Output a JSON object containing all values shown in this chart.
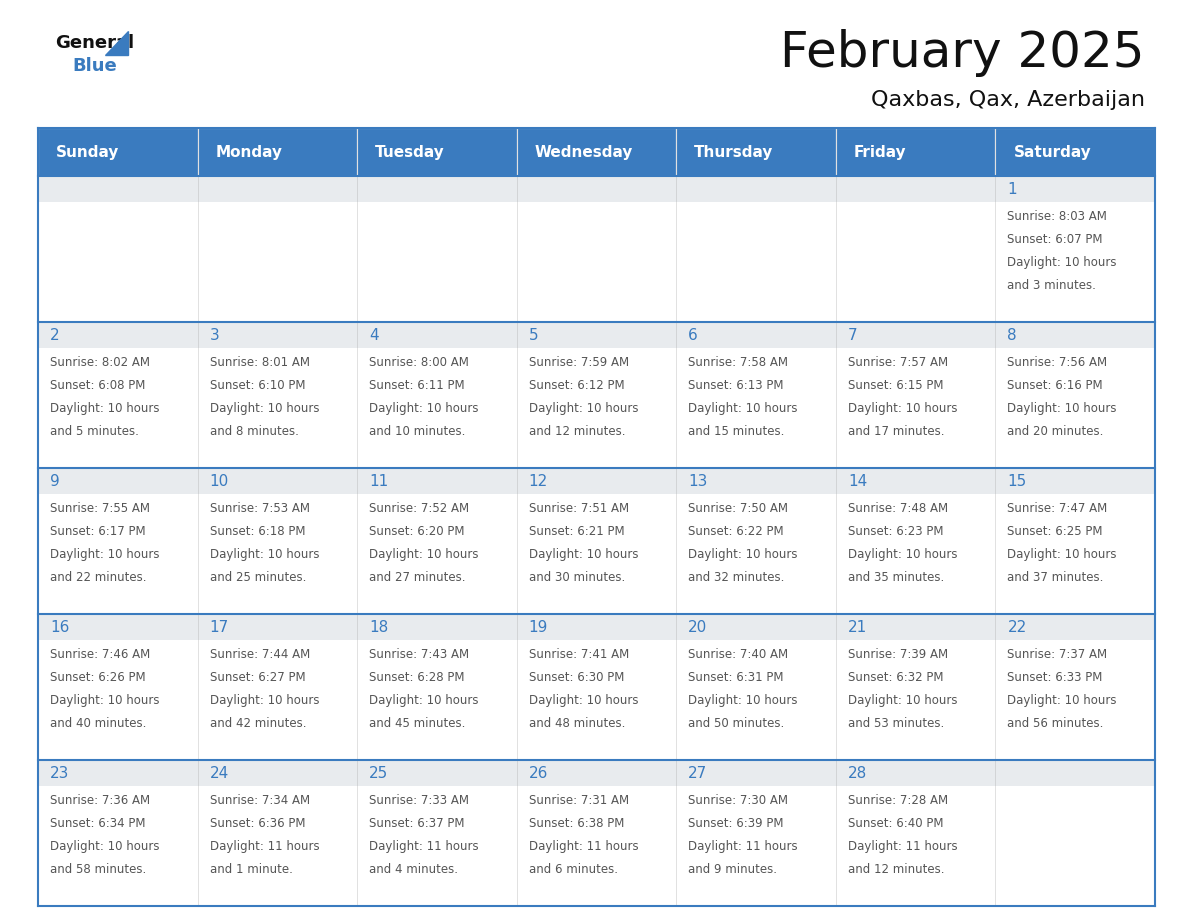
{
  "title": "February 2025",
  "subtitle": "Qaxbas, Qax, Azerbaijan",
  "days_of_week": [
    "Sunday",
    "Monday",
    "Tuesday",
    "Wednesday",
    "Thursday",
    "Friday",
    "Saturday"
  ],
  "header_bg": "#3a7bbf",
  "header_text": "#ffffff",
  "title_color": "#111111",
  "subtitle_color": "#111111",
  "day_number_color": "#3a7bbf",
  "cell_text_color": "#555555",
  "row_sep_color": "#3a7bbf",
  "bg_color": "#ffffff",
  "day_num_bg": "#eeeff2",
  "calendar_data": [
    [
      null,
      null,
      null,
      null,
      null,
      null,
      {
        "day": 1,
        "sunrise": "8:03 AM",
        "sunset": "6:07 PM",
        "dl1": "Daylight: 10 hours",
        "dl2": "and 3 minutes."
      }
    ],
    [
      {
        "day": 2,
        "sunrise": "8:02 AM",
        "sunset": "6:08 PM",
        "dl1": "Daylight: 10 hours",
        "dl2": "and 5 minutes."
      },
      {
        "day": 3,
        "sunrise": "8:01 AM",
        "sunset": "6:10 PM",
        "dl1": "Daylight: 10 hours",
        "dl2": "and 8 minutes."
      },
      {
        "day": 4,
        "sunrise": "8:00 AM",
        "sunset": "6:11 PM",
        "dl1": "Daylight: 10 hours",
        "dl2": "and 10 minutes."
      },
      {
        "day": 5,
        "sunrise": "7:59 AM",
        "sunset": "6:12 PM",
        "dl1": "Daylight: 10 hours",
        "dl2": "and 12 minutes."
      },
      {
        "day": 6,
        "sunrise": "7:58 AM",
        "sunset": "6:13 PM",
        "dl1": "Daylight: 10 hours",
        "dl2": "and 15 minutes."
      },
      {
        "day": 7,
        "sunrise": "7:57 AM",
        "sunset": "6:15 PM",
        "dl1": "Daylight: 10 hours",
        "dl2": "and 17 minutes."
      },
      {
        "day": 8,
        "sunrise": "7:56 AM",
        "sunset": "6:16 PM",
        "dl1": "Daylight: 10 hours",
        "dl2": "and 20 minutes."
      }
    ],
    [
      {
        "day": 9,
        "sunrise": "7:55 AM",
        "sunset": "6:17 PM",
        "dl1": "Daylight: 10 hours",
        "dl2": "and 22 minutes."
      },
      {
        "day": 10,
        "sunrise": "7:53 AM",
        "sunset": "6:18 PM",
        "dl1": "Daylight: 10 hours",
        "dl2": "and 25 minutes."
      },
      {
        "day": 11,
        "sunrise": "7:52 AM",
        "sunset": "6:20 PM",
        "dl1": "Daylight: 10 hours",
        "dl2": "and 27 minutes."
      },
      {
        "day": 12,
        "sunrise": "7:51 AM",
        "sunset": "6:21 PM",
        "dl1": "Daylight: 10 hours",
        "dl2": "and 30 minutes."
      },
      {
        "day": 13,
        "sunrise": "7:50 AM",
        "sunset": "6:22 PM",
        "dl1": "Daylight: 10 hours",
        "dl2": "and 32 minutes."
      },
      {
        "day": 14,
        "sunrise": "7:48 AM",
        "sunset": "6:23 PM",
        "dl1": "Daylight: 10 hours",
        "dl2": "and 35 minutes."
      },
      {
        "day": 15,
        "sunrise": "7:47 AM",
        "sunset": "6:25 PM",
        "dl1": "Daylight: 10 hours",
        "dl2": "and 37 minutes."
      }
    ],
    [
      {
        "day": 16,
        "sunrise": "7:46 AM",
        "sunset": "6:26 PM",
        "dl1": "Daylight: 10 hours",
        "dl2": "and 40 minutes."
      },
      {
        "day": 17,
        "sunrise": "7:44 AM",
        "sunset": "6:27 PM",
        "dl1": "Daylight: 10 hours",
        "dl2": "and 42 minutes."
      },
      {
        "day": 18,
        "sunrise": "7:43 AM",
        "sunset": "6:28 PM",
        "dl1": "Daylight: 10 hours",
        "dl2": "and 45 minutes."
      },
      {
        "day": 19,
        "sunrise": "7:41 AM",
        "sunset": "6:30 PM",
        "dl1": "Daylight: 10 hours",
        "dl2": "and 48 minutes."
      },
      {
        "day": 20,
        "sunrise": "7:40 AM",
        "sunset": "6:31 PM",
        "dl1": "Daylight: 10 hours",
        "dl2": "and 50 minutes."
      },
      {
        "day": 21,
        "sunrise": "7:39 AM",
        "sunset": "6:32 PM",
        "dl1": "Daylight: 10 hours",
        "dl2": "and 53 minutes."
      },
      {
        "day": 22,
        "sunrise": "7:37 AM",
        "sunset": "6:33 PM",
        "dl1": "Daylight: 10 hours",
        "dl2": "and 56 minutes."
      }
    ],
    [
      {
        "day": 23,
        "sunrise": "7:36 AM",
        "sunset": "6:34 PM",
        "dl1": "Daylight: 10 hours",
        "dl2": "and 58 minutes."
      },
      {
        "day": 24,
        "sunrise": "7:34 AM",
        "sunset": "6:36 PM",
        "dl1": "Daylight: 11 hours",
        "dl2": "and 1 minute."
      },
      {
        "day": 25,
        "sunrise": "7:33 AM",
        "sunset": "6:37 PM",
        "dl1": "Daylight: 11 hours",
        "dl2": "and 4 minutes."
      },
      {
        "day": 26,
        "sunrise": "7:31 AM",
        "sunset": "6:38 PM",
        "dl1": "Daylight: 11 hours",
        "dl2": "and 6 minutes."
      },
      {
        "day": 27,
        "sunrise": "7:30 AM",
        "sunset": "6:39 PM",
        "dl1": "Daylight: 11 hours",
        "dl2": "and 9 minutes."
      },
      {
        "day": 28,
        "sunrise": "7:28 AM",
        "sunset": "6:40 PM",
        "dl1": "Daylight: 11 hours",
        "dl2": "and 12 minutes."
      },
      null
    ]
  ]
}
